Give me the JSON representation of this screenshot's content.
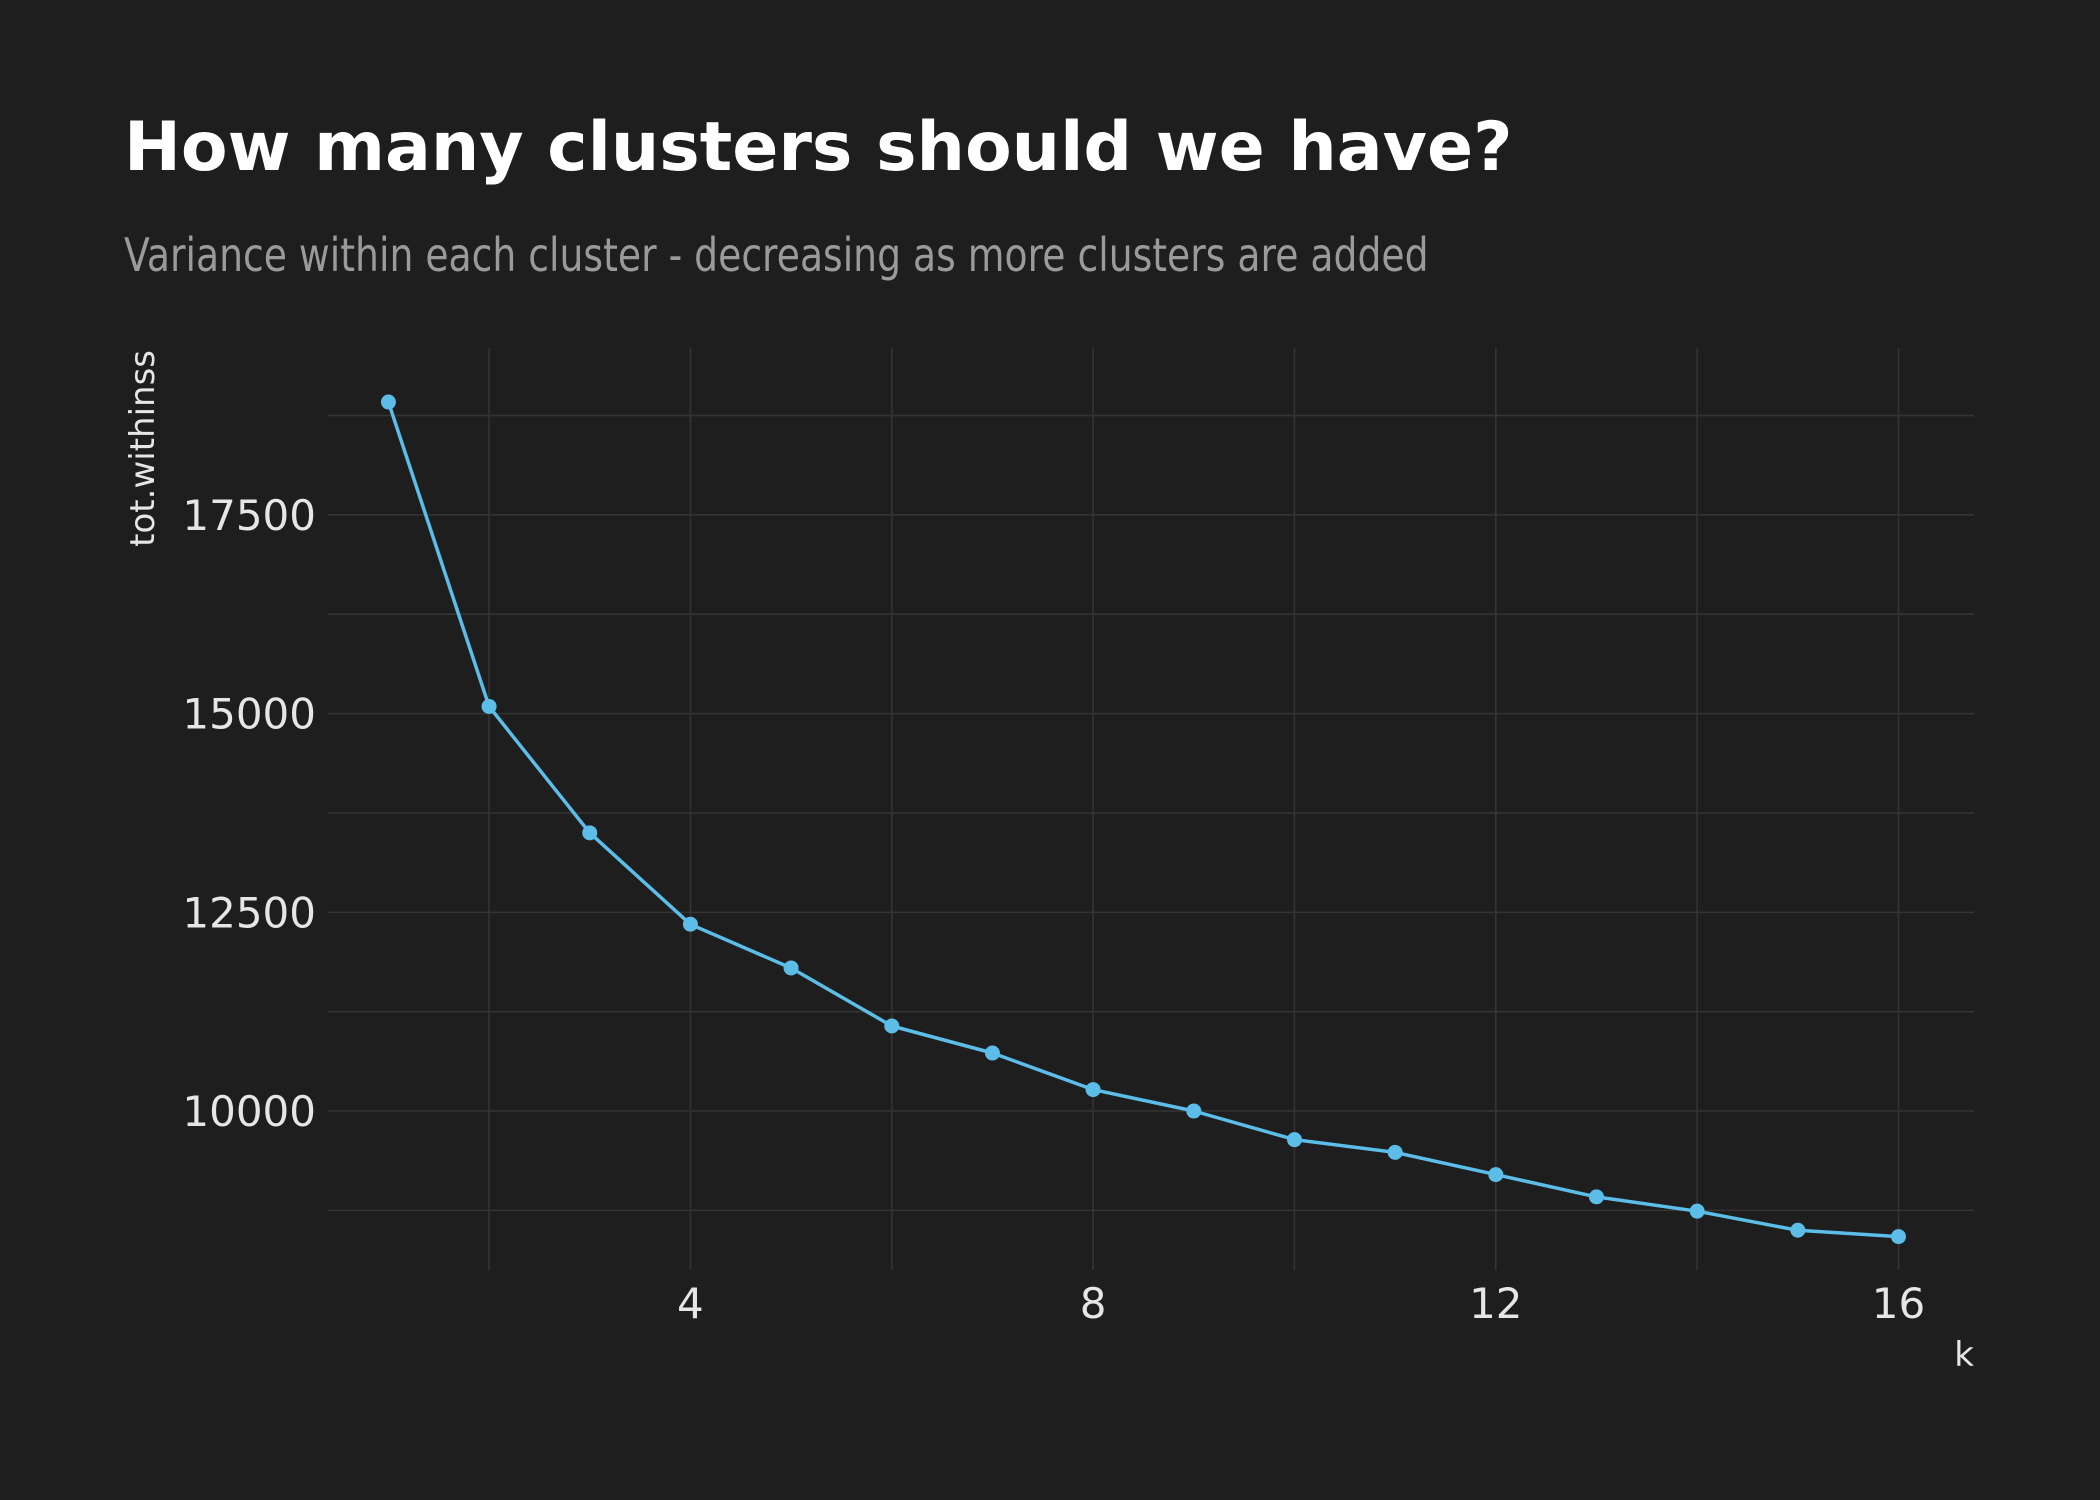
{
  "chart_data": {
    "type": "line",
    "title": "How many clusters should we have?",
    "subtitle": "Variance within each cluster - decreasing as more clusters are added",
    "xlabel": "k",
    "ylabel": "tot.withinss",
    "x": [
      1,
      2,
      3,
      4,
      5,
      6,
      7,
      8,
      9,
      10,
      11,
      12,
      13,
      14,
      15,
      16
    ],
    "series": [
      {
        "values": [
          18920,
          15090,
          13500,
          12350,
          11800,
          11070,
          10730,
          10270,
          10000,
          9640,
          9480,
          9200,
          8920,
          8740,
          8500,
          8420
        ]
      }
    ],
    "xticks": [
      4,
      8,
      12,
      16
    ],
    "yticks": [
      10000,
      12500,
      15000,
      17500
    ],
    "xlim": [
      0.4,
      16.75
    ],
    "ylim": [
      8000,
      19600
    ],
    "grid": true,
    "legend": "none",
    "colors": {
      "background": "#1e1e1e",
      "line": "#5bbde8",
      "grid": "#353535",
      "text": "#e6e6e6"
    }
  }
}
